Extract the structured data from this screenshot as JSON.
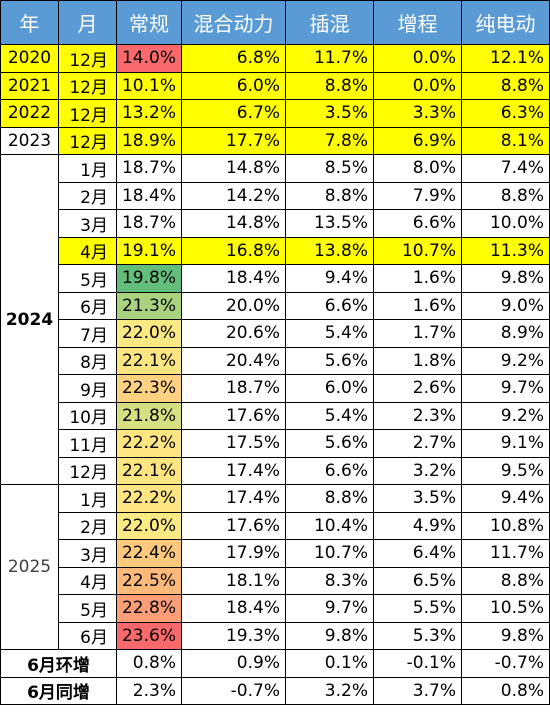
{
  "headers": [
    "年",
    "月",
    "常规",
    "混合动力",
    "插混",
    "增程",
    "纯电动"
  ],
  "colors": {
    "header_bg": "#5b9bd5",
    "highlight_row": "#ffff00",
    "regular_heat": [
      "#f8696b",
      "#63be7b",
      "#ffeb84"
    ]
  },
  "rows": [
    {
      "year": "2020",
      "month": "12月",
      "regular": "14.0%",
      "hybrid": "6.8%",
      "phev": "11.7%",
      "erev": "0.0%",
      "bev": "12.1%",
      "yellow": true,
      "reg_bg": "#f8696b"
    },
    {
      "year": "2021",
      "month": "12月",
      "regular": "10.1%",
      "hybrid": "6.0%",
      "phev": "8.8%",
      "erev": "0.0%",
      "bev": "8.8%",
      "yellow": true,
      "reg_bg": "#ffff00"
    },
    {
      "year": "2022",
      "month": "12月",
      "regular": "13.2%",
      "hybrid": "6.7%",
      "phev": "3.5%",
      "erev": "3.3%",
      "bev": "6.3%",
      "yellow": true,
      "reg_bg": "#ffff00"
    },
    {
      "year": "2023",
      "month": "12月",
      "regular": "18.9%",
      "hybrid": "17.7%",
      "phev": "7.8%",
      "erev": "6.9%",
      "bev": "8.1%",
      "yellow": true,
      "reg_bg": "#ffff00",
      "year_white": true
    },
    {
      "year": "",
      "month": "1月",
      "regular": "18.7%",
      "hybrid": "14.8%",
      "phev": "8.5%",
      "erev": "8.0%",
      "bev": "7.4%"
    },
    {
      "year": "",
      "month": "2月",
      "regular": "18.4%",
      "hybrid": "14.2%",
      "phev": "8.8%",
      "erev": "7.9%",
      "bev": "8.8%"
    },
    {
      "year": "",
      "month": "3月",
      "regular": "18.7%",
      "hybrid": "14.8%",
      "phev": "13.5%",
      "erev": "6.6%",
      "bev": "10.0%"
    },
    {
      "year": "",
      "month": "4月",
      "regular": "19.1%",
      "hybrid": "16.8%",
      "phev": "13.8%",
      "erev": "10.7%",
      "bev": "11.3%",
      "yellow": true,
      "reg_bg": "#ffff00"
    },
    {
      "year": "",
      "month": "5月",
      "regular": "19.8%",
      "hybrid": "18.4%",
      "phev": "9.4%",
      "erev": "1.6%",
      "bev": "9.8%",
      "reg_bg": "#63be7b"
    },
    {
      "year": "",
      "month": "6月",
      "regular": "21.3%",
      "hybrid": "20.0%",
      "phev": "6.6%",
      "erev": "1.6%",
      "bev": "9.0%",
      "reg_bg": "#a9d27f"
    },
    {
      "year": "",
      "month": "7月",
      "regular": "22.0%",
      "hybrid": "20.6%",
      "phev": "5.4%",
      "erev": "1.7%",
      "bev": "8.9%",
      "reg_bg": "#fbe983"
    },
    {
      "year": "",
      "month": "8月",
      "regular": "22.1%",
      "hybrid": "20.4%",
      "phev": "5.6%",
      "erev": "1.8%",
      "bev": "9.2%",
      "reg_bg": "#fde682"
    },
    {
      "year": "",
      "month": "9月",
      "regular": "22.3%",
      "hybrid": "18.7%",
      "phev": "6.0%",
      "erev": "2.6%",
      "bev": "9.7%",
      "reg_bg": "#fed280"
    },
    {
      "year": "",
      "month": "10月",
      "regular": "21.8%",
      "hybrid": "17.6%",
      "phev": "5.4%",
      "erev": "2.3%",
      "bev": "9.2%",
      "reg_bg": "#d6e081"
    },
    {
      "year": "",
      "month": "11月",
      "regular": "22.2%",
      "hybrid": "17.5%",
      "phev": "5.6%",
      "erev": "2.7%",
      "bev": "9.1%",
      "reg_bg": "#fee582"
    },
    {
      "year": "",
      "month": "12月",
      "regular": "22.1%",
      "hybrid": "17.4%",
      "phev": "6.6%",
      "erev": "3.2%",
      "bev": "9.5%",
      "reg_bg": "#fde682"
    },
    {
      "year": "",
      "month": "1月",
      "regular": "22.2%",
      "hybrid": "17.4%",
      "phev": "8.8%",
      "erev": "3.5%",
      "bev": "9.4%",
      "reg_bg": "#fee582"
    },
    {
      "year": "",
      "month": "2月",
      "regular": "22.0%",
      "hybrid": "17.6%",
      "phev": "10.4%",
      "erev": "4.9%",
      "bev": "10.8%",
      "reg_bg": "#fbe983"
    },
    {
      "year": "",
      "month": "3月",
      "regular": "22.4%",
      "hybrid": "17.9%",
      "phev": "10.7%",
      "erev": "6.4%",
      "bev": "11.7%",
      "reg_bg": "#fec97d"
    },
    {
      "year": "",
      "month": "4月",
      "regular": "22.5%",
      "hybrid": "18.1%",
      "phev": "8.3%",
      "erev": "6.5%",
      "bev": "8.8%",
      "reg_bg": "#fdb97a"
    },
    {
      "year": "",
      "month": "5月",
      "regular": "22.8%",
      "hybrid": "18.4%",
      "phev": "9.7%",
      "erev": "5.5%",
      "bev": "10.5%",
      "reg_bg": "#fb9d75"
    },
    {
      "year": "",
      "month": "6月",
      "regular": "23.6%",
      "hybrid": "19.3%",
      "phev": "9.8%",
      "erev": "5.3%",
      "bev": "9.8%",
      "reg_bg": "#f8696b"
    }
  ],
  "year_groups": {
    "y2024": "2024",
    "y2025": "2025"
  },
  "summary": [
    {
      "label": "6月环增",
      "regular": "0.8%",
      "hybrid": "0.9%",
      "phev": "0.1%",
      "erev": "-0.1%",
      "bev": "-0.7%"
    },
    {
      "label": "6月同增",
      "regular": "2.3%",
      "hybrid": "-0.7%",
      "phev": "3.2%",
      "erev": "3.7%",
      "bev": "0.8%"
    }
  ]
}
